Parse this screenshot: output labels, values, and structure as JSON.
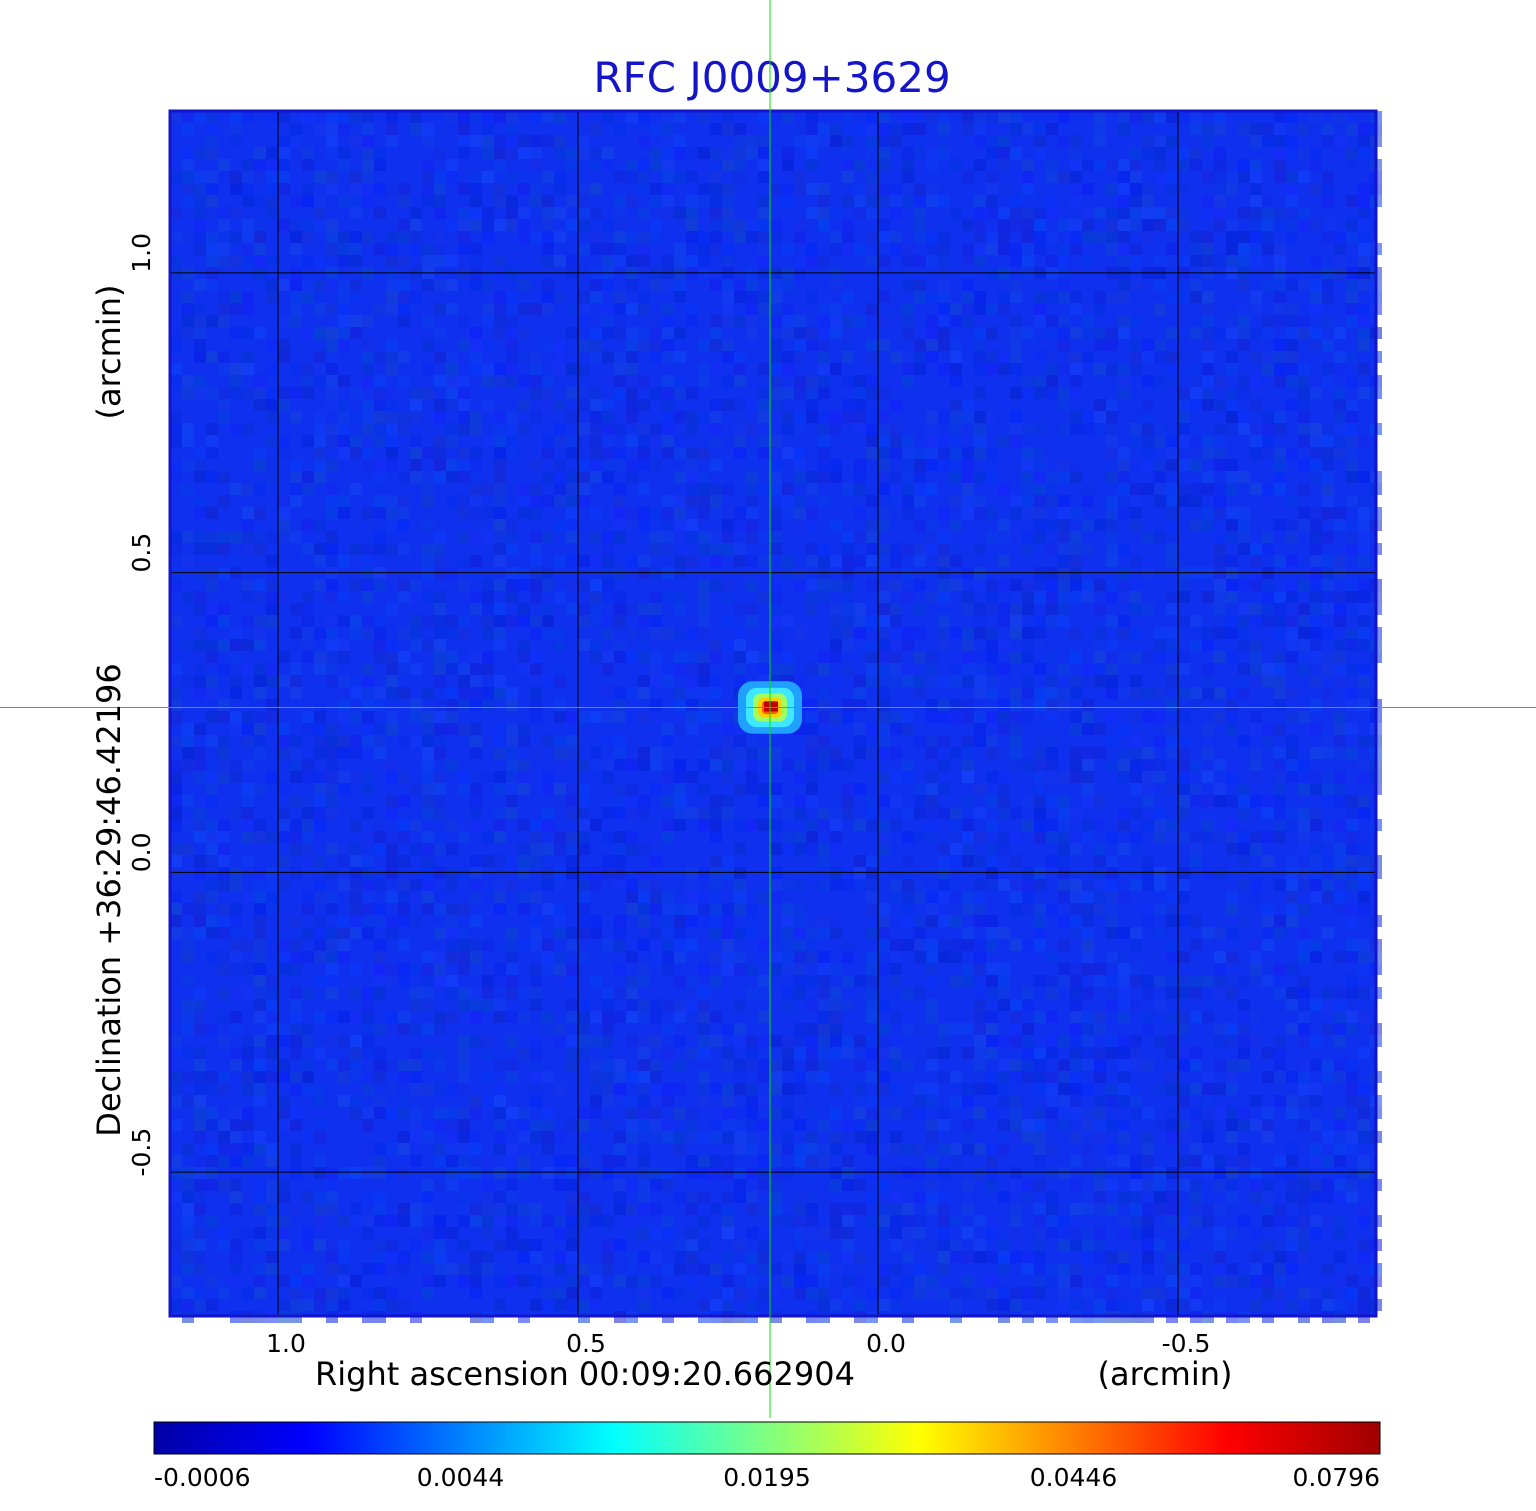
{
  "chart_data": {
    "type": "heatmap",
    "title": "RFC J0009+3629",
    "xlabel": "Right ascension  00:09:20.662904",
    "xunit": "(arcmin)",
    "ylabel": "Declination  +36:29:46.42196",
    "yunit": "(arcmin)",
    "xlim": [
      1.18,
      -0.83
    ],
    "ylim": [
      -0.74,
      1.27
    ],
    "x_ticks": [
      {
        "value": 1.0,
        "label": "1.0"
      },
      {
        "value": 0.5,
        "label": "0.5"
      },
      {
        "value": 0.0,
        "label": "0.0"
      },
      {
        "value": -0.5,
        "label": "-0.5"
      }
    ],
    "y_ticks": [
      {
        "value": 1.0,
        "label": "1.0"
      },
      {
        "value": 0.5,
        "label": "0.5"
      },
      {
        "value": 0.0,
        "label": "0.0"
      },
      {
        "value": -0.5,
        "label": "-0.5"
      }
    ],
    "grid": true,
    "source": {
      "x": 0.18,
      "y": 0.275,
      "peak": 0.0796
    },
    "crosshair": {
      "x": 0.18,
      "y": 0.275,
      "color": "#00e000"
    },
    "background_color": "#1030f0",
    "colorbar": {
      "min": -0.0006,
      "max": 0.0796,
      "tick_labels": [
        "-0.0006",
        "0.0044",
        "0.0195",
        "0.0446",
        "0.0796"
      ],
      "colormap": [
        "#0000a8",
        "#0000ff",
        "#0080ff",
        "#00ffff",
        "#80ff80",
        "#ffff00",
        "#ff8000",
        "#ff0000",
        "#a00000"
      ]
    }
  }
}
